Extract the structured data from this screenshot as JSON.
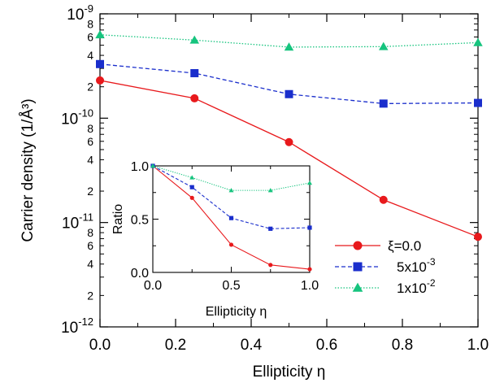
{
  "chart_data": [
    {
      "type": "line",
      "role": "main",
      "xlabel": "Ellipticity η",
      "ylabel": "Carrier density (1/Å³)",
      "yscale": "log",
      "xlim": [
        0,
        1
      ],
      "ylim": [
        1e-12,
        1e-09
      ],
      "x_ticks": [
        "0.0",
        "0.2",
        "0.4",
        "0.6",
        "0.8",
        "1.0"
      ],
      "y_decade_labels": [
        {
          "value": 1e-12,
          "mantissa": "10",
          "exp": "-12"
        },
        {
          "value": 1e-11,
          "mantissa": "10",
          "exp": "-11"
        },
        {
          "value": 1e-10,
          "mantissa": "10",
          "exp": "-10"
        },
        {
          "value": 1e-09,
          "mantissa": "10",
          "exp": "-9"
        }
      ],
      "y_minor_labels": [
        {
          "value": 2e-12,
          "label": "2"
        },
        {
          "value": 4e-12,
          "label": "4"
        },
        {
          "value": 6e-12,
          "label": "6"
        },
        {
          "value": 8e-12,
          "label": "8"
        },
        {
          "value": 2e-11,
          "label": "2"
        },
        {
          "value": 4e-11,
          "label": "4"
        },
        {
          "value": 6e-11,
          "label": "6"
        },
        {
          "value": 8e-11,
          "label": "8"
        },
        {
          "value": 2e-10,
          "label": "2"
        },
        {
          "value": 4e-10,
          "label": "4"
        },
        {
          "value": 6e-10,
          "label": "6"
        },
        {
          "value": 8e-10,
          "label": "8"
        }
      ],
      "x": [
        0,
        0.25,
        0.5,
        0.75,
        1.0
      ],
      "series": [
        {
          "name": "ξ=0.0",
          "color": "#e8191c",
          "marker": "circle",
          "dash": "solid",
          "values": [
            2.3e-10,
            1.55e-10,
            5.9e-11,
            1.65e-11,
            7.3e-12
          ]
        },
        {
          "name": "5x10",
          "name_exp": "-3",
          "color": "#1a2ecc",
          "marker": "square",
          "dash": "dashed",
          "values": [
            3.3e-10,
            2.7e-10,
            1.7e-10,
            1.38e-10,
            1.4e-10
          ]
        },
        {
          "name": "1x10",
          "name_exp": "-2",
          "color": "#16c47e",
          "marker": "triangle",
          "dash": "dotted",
          "values": [
            6.3e-10,
            5.6e-10,
            4.8e-10,
            4.85e-10,
            5.3e-10
          ]
        }
      ],
      "legend": "bottom-right"
    },
    {
      "type": "line",
      "role": "inset",
      "xlabel": "Ellipticity η",
      "ylabel": "Ratio",
      "xlim": [
        0,
        1
      ],
      "ylim": [
        0,
        1
      ],
      "x_ticks": [
        "0.0",
        "0.5",
        "1.0"
      ],
      "y_ticks": [
        "0.0",
        "0.5",
        "1.0"
      ],
      "x": [
        0,
        0.25,
        0.5,
        0.75,
        1.0
      ],
      "series": [
        {
          "color": "#e8191c",
          "marker": "circle",
          "dash": "solid",
          "values": [
            1.0,
            0.7,
            0.26,
            0.07,
            0.03
          ]
        },
        {
          "color": "#1a2ecc",
          "marker": "square",
          "dash": "dashed",
          "values": [
            1.0,
            0.8,
            0.51,
            0.41,
            0.42
          ]
        },
        {
          "color": "#16c47e",
          "marker": "triangle",
          "dash": "dotted",
          "values": [
            1.0,
            0.89,
            0.77,
            0.77,
            0.84
          ]
        }
      ]
    }
  ]
}
